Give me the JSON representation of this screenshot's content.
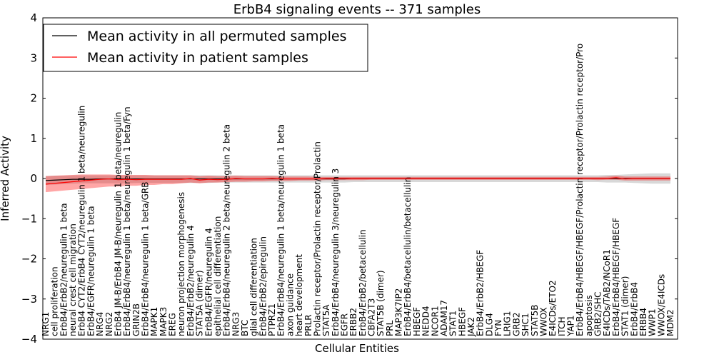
{
  "chart_data": {
    "type": "line",
    "title": "ErbB4 signaling events -- 371 samples",
    "xlabel": "Cellular Entities",
    "ylabel": "Inferred Activity",
    "ylim": [
      -4,
      4
    ],
    "yticks": [
      "−4",
      "−3",
      "−2",
      "−1",
      "0",
      "1",
      "2",
      "3",
      "4"
    ],
    "grid": false,
    "legend_position": "top-left",
    "categories": [
      "NRG1",
      "cell proliferation",
      "ErbB4/ErbB2/neuregulin 1 beta",
      "neural crest cell migration",
      "ErbB4 CYT2/ErbB4 CYT2/neuregulin 1 beta/neuregulin",
      "ErbB4/EGFR/neuregulin 1 beta",
      "NRG4",
      "NRG2",
      "ErbB4 JM-B/ErbB4 JM-B/neuregulin 1 beta/neuregulin",
      "ErbB4/ErbB4/neuregulin 1 beta/neuregulin 1 beta/Fyn",
      "GRIN2B",
      "ErbB4/ErbB4/neuregulin 1 beta/GRB",
      "MAPK1",
      "MAPK3",
      "EREG",
      "neuron projection morphogenesis",
      "ErbB4/ErbB2/neuregulin 4",
      "STAT5A (dimer)",
      "ErbB4/EGFR/neuregulin 4",
      "epithelial cell differentiation",
      "ErbB4/ErbB4/neuregulin 2 beta/neuregulin 2 beta",
      "NRG3",
      "BTC",
      "glial cell differentiation",
      "ErbB4/ErbB2/epiregulin",
      "PTPRZ1",
      "ErbB4/ErbB4/neuregulin 1 beta/neuregulin 1 beta",
      "axon guidance",
      "heart development",
      "PRLR",
      "Prolactin receptor/Prolactin receptor/Prolactin",
      "STAT5A",
      "ErbB4/ErbB4/neuregulin 3/neuregulin 3",
      "EGFR",
      "ERBB2",
      "ErbB4/ErbB2/betacellulin",
      "CBFA2T3",
      "STAT5B (dimer)",
      "PRL",
      "MAP3K7IP2",
      "ErbB4/ErbB4/betacellulin/betacellulin",
      "HBEGF",
      "NEDD4",
      "NCOR1",
      "ADAM17",
      "STAT1",
      "HBEGF",
      "JAK2",
      "ErbB4/ErbB2/HBEGF",
      "DLG4",
      "FYN",
      "LRIG1",
      "GRB2",
      "SHC1",
      "STAT5B",
      "WWOX",
      "E4ICDs/ETO2",
      "ITCH",
      "YAP1",
      "ErbB4/ErbB4/HBEGF/HBEGF/Prolactin receptor/Prolactin receptor/Pro",
      "apoptosis",
      "GRB2/SHC",
      "E4ICDs/TAB2/NCoR1",
      "ErbB4/ErbB4/HBEGF/HBEGF",
      "STAT1 (dimer)",
      "ErbB4/ErbB4",
      "ERBB4",
      "WWP1",
      "WWOX/E4ICDs",
      "MDM2"
    ],
    "series": [
      {
        "name": "Mean activity in all permuted samples",
        "color": "#000000",
        "values": [
          -0.05,
          -0.04,
          -0.03,
          -0.02,
          -0.02,
          -0.02,
          -0.01,
          -0.01,
          -0.01,
          -0.01,
          -0.01,
          -0.01,
          -0.01,
          -0.01,
          -0.01,
          -0.01,
          -0.01,
          -0.01,
          -0.01,
          -0.01,
          -0.01,
          -0.01,
          -0.01,
          -0.01,
          -0.01,
          -0.01,
          -0.01,
          -0.01,
          -0.01,
          -0.01,
          -0.01,
          -0.01,
          -0.01,
          -0.01,
          0.0,
          0.0,
          0.0,
          0.0,
          0.0,
          0.0,
          0.0,
          0.0,
          0.0,
          0.0,
          0.0,
          0.0,
          0.0,
          0.0,
          0.0,
          0.0,
          0.0,
          0.0,
          0.0,
          0.0,
          0.0,
          0.0,
          0.0,
          0.0,
          0.0,
          0.0,
          0.0,
          0.0,
          0.0,
          0.0,
          0.0,
          0.0,
          0.0,
          0.0,
          0.0,
          0.0
        ],
        "band_lower": [
          -0.16,
          -0.15,
          -0.14,
          -0.13,
          -0.12,
          -0.12,
          -0.12,
          -0.12,
          -0.12,
          -0.12,
          -0.11,
          -0.11,
          -0.11,
          -0.11,
          -0.11,
          -0.11,
          -0.11,
          -0.11,
          -0.11,
          -0.1,
          -0.1,
          -0.1,
          -0.1,
          -0.1,
          -0.1,
          -0.1,
          -0.1,
          -0.1,
          -0.1,
          -0.1,
          -0.1,
          -0.1,
          -0.1,
          -0.1,
          -0.09,
          -0.09,
          -0.09,
          -0.09,
          -0.09,
          -0.09,
          -0.09,
          -0.09,
          -0.09,
          -0.09,
          -0.09,
          -0.09,
          -0.09,
          -0.09,
          -0.09,
          -0.09,
          -0.09,
          -0.09,
          -0.09,
          -0.09,
          -0.09,
          -0.09,
          -0.09,
          -0.09,
          -0.09,
          -0.09,
          -0.09,
          -0.09,
          -0.1,
          -0.1,
          -0.1,
          -0.11,
          -0.12,
          -0.13,
          -0.13,
          -0.13
        ],
        "band_upper": [
          0.06,
          0.07,
          0.07,
          0.08,
          0.08,
          0.08,
          0.08,
          0.08,
          0.08,
          0.08,
          0.08,
          0.08,
          0.08,
          0.08,
          0.08,
          0.08,
          0.08,
          0.08,
          0.08,
          0.08,
          0.08,
          0.08,
          0.08,
          0.08,
          0.08,
          0.08,
          0.08,
          0.08,
          0.08,
          0.08,
          0.08,
          0.08,
          0.08,
          0.08,
          0.08,
          0.08,
          0.08,
          0.08,
          0.08,
          0.08,
          0.08,
          0.08,
          0.08,
          0.08,
          0.08,
          0.08,
          0.08,
          0.08,
          0.08,
          0.08,
          0.08,
          0.08,
          0.08,
          0.08,
          0.08,
          0.08,
          0.08,
          0.08,
          0.08,
          0.08,
          0.08,
          0.08,
          0.09,
          0.09,
          0.1,
          0.11,
          0.12,
          0.13,
          0.13,
          0.13
        ]
      },
      {
        "name": "Mean activity in patient samples",
        "color": "#ff0000",
        "values": [
          -0.14,
          -0.12,
          -0.1,
          -0.08,
          -0.06,
          -0.04,
          -0.02,
          -0.01,
          -0.03,
          -0.02,
          -0.03,
          -0.02,
          -0.02,
          -0.02,
          -0.02,
          -0.02,
          0.0,
          -0.04,
          -0.02,
          -0.03,
          -0.02,
          0.0,
          -0.01,
          -0.01,
          -0.01,
          0.0,
          -0.01,
          -0.01,
          -0.01,
          -0.01,
          -0.01,
          0.0,
          0.0,
          0.0,
          0.0,
          0.0,
          0.0,
          0.0,
          0.0,
          0.0,
          0.0,
          0.0,
          0.0,
          0.0,
          0.0,
          0.0,
          0.0,
          0.0,
          0.0,
          0.0,
          0.0,
          0.0,
          0.0,
          0.0,
          0.0,
          0.0,
          0.0,
          0.0,
          0.0,
          0.0,
          0.0,
          0.0,
          0.0,
          0.02,
          -0.01,
          0.0,
          0.0,
          0.0,
          0.0,
          0.0
        ],
        "band_lower": [
          -0.34,
          -0.32,
          -0.3,
          -0.28,
          -0.26,
          -0.24,
          -0.22,
          -0.2,
          -0.2,
          -0.18,
          -0.18,
          -0.16,
          -0.16,
          -0.14,
          -0.14,
          -0.12,
          -0.1,
          -0.12,
          -0.1,
          -0.1,
          -0.09,
          -0.08,
          -0.08,
          -0.07,
          -0.07,
          -0.06,
          -0.06,
          -0.06,
          -0.05,
          -0.05,
          -0.05,
          -0.04,
          -0.04,
          -0.04,
          -0.04,
          -0.04,
          -0.03,
          -0.03,
          -0.03,
          -0.03,
          -0.03,
          -0.03,
          -0.03,
          -0.03,
          -0.03,
          -0.03,
          -0.03,
          -0.03,
          -0.03,
          -0.03,
          -0.03,
          -0.03,
          -0.03,
          -0.03,
          -0.03,
          -0.03,
          -0.03,
          -0.03,
          -0.03,
          -0.03,
          -0.03,
          -0.04,
          -0.03,
          -0.03,
          -0.05,
          -0.05,
          -0.05,
          -0.05,
          -0.05,
          -0.05
        ],
        "band_upper": [
          0.06,
          0.07,
          0.08,
          0.09,
          0.1,
          0.1,
          0.1,
          0.1,
          0.09,
          0.09,
          0.09,
          0.09,
          0.08,
          0.08,
          0.08,
          0.08,
          0.08,
          0.06,
          0.07,
          0.06,
          0.06,
          0.07,
          0.06,
          0.06,
          0.06,
          0.06,
          0.05,
          0.05,
          0.05,
          0.05,
          0.04,
          0.04,
          0.04,
          0.04,
          0.04,
          0.04,
          0.04,
          0.04,
          0.04,
          0.04,
          0.04,
          0.04,
          0.04,
          0.04,
          0.04,
          0.04,
          0.04,
          0.04,
          0.04,
          0.04,
          0.04,
          0.04,
          0.04,
          0.04,
          0.04,
          0.04,
          0.04,
          0.04,
          0.04,
          0.04,
          0.04,
          0.04,
          0.05,
          0.07,
          0.05,
          0.05,
          0.05,
          0.05,
          0.05,
          0.05
        ]
      }
    ]
  }
}
